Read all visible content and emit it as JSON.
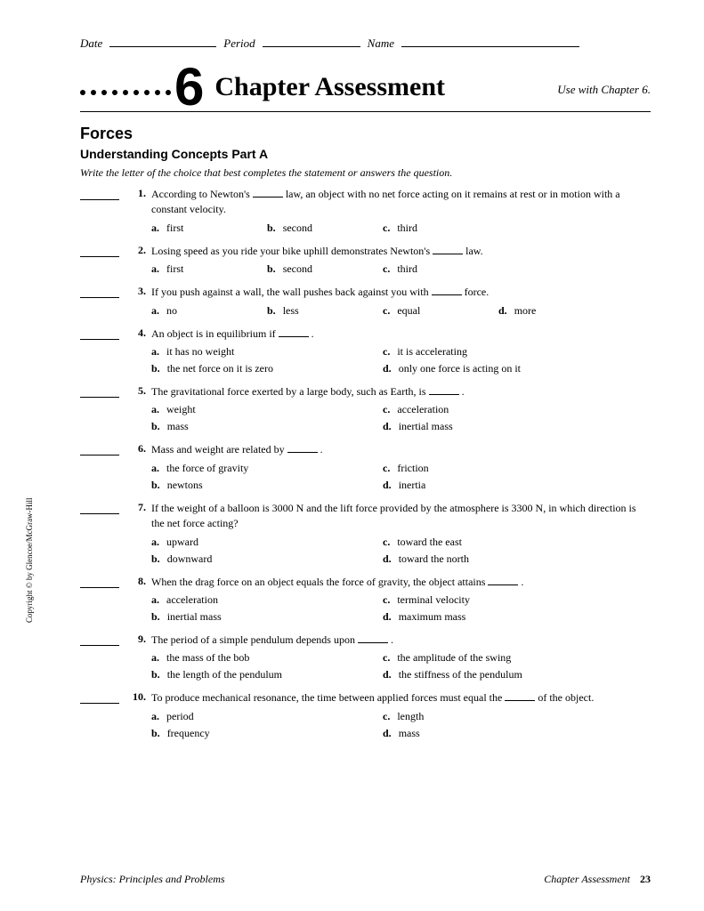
{
  "header": {
    "date_label": "Date",
    "period_label": "Period",
    "name_label": "Name"
  },
  "chapter": {
    "number": "6",
    "title": "Chapter Assessment",
    "use_with": "Use with Chapter 6."
  },
  "section": {
    "title": "Forces",
    "subtitle": "Understanding Concepts Part A",
    "instructions": "Write the letter of the choice that best completes the statement or answers the question."
  },
  "questions": [
    {
      "num": "1.",
      "text_before": "According to Newton's ",
      "text_after": " law, an object with no net force acting on it remains at rest or in motion with a constant velocity.",
      "layout": "inline",
      "choices": [
        {
          "l": "a.",
          "t": "first"
        },
        {
          "l": "b.",
          "t": "second"
        },
        {
          "l": "c.",
          "t": "third"
        }
      ]
    },
    {
      "num": "2.",
      "text_before": "Losing speed as you ride your bike uphill demonstrates Newton's ",
      "text_after": " law.",
      "layout": "inline",
      "choices": [
        {
          "l": "a.",
          "t": "first"
        },
        {
          "l": "b.",
          "t": "second"
        },
        {
          "l": "c.",
          "t": "third"
        }
      ]
    },
    {
      "num": "3.",
      "text_before": "If you push against a wall, the wall pushes back against you with ",
      "text_after": " force.",
      "layout": "inline",
      "choices": [
        {
          "l": "a.",
          "t": "no"
        },
        {
          "l": "b.",
          "t": "less"
        },
        {
          "l": "c.",
          "t": "equal"
        },
        {
          "l": "d.",
          "t": "more"
        }
      ]
    },
    {
      "num": "4.",
      "text_before": "An object is in equilibrium if ",
      "text_after": " .",
      "layout": "2col",
      "choices": [
        {
          "l": "a.",
          "t": "it has no weight"
        },
        {
          "l": "c.",
          "t": "it is accelerating"
        },
        {
          "l": "b.",
          "t": "the net force on it is zero"
        },
        {
          "l": "d.",
          "t": "only one force is acting on it"
        }
      ]
    },
    {
      "num": "5.",
      "text_before": "The gravitational force exerted by a large body, such as Earth, is ",
      "text_after": " .",
      "layout": "2col",
      "choices": [
        {
          "l": "a.",
          "t": "weight"
        },
        {
          "l": "c.",
          "t": "acceleration"
        },
        {
          "l": "b.",
          "t": "mass"
        },
        {
          "l": "d.",
          "t": "inertial mass"
        }
      ]
    },
    {
      "num": "6.",
      "text_before": "Mass and weight are related by ",
      "text_after": " .",
      "layout": "2col",
      "choices": [
        {
          "l": "a.",
          "t": "the force of gravity"
        },
        {
          "l": "c.",
          "t": "friction"
        },
        {
          "l": "b.",
          "t": "newtons"
        },
        {
          "l": "d.",
          "t": "inertia"
        }
      ]
    },
    {
      "num": "7.",
      "text_before": "If the weight of a balloon is 3000 N and the lift force provided by the atmosphere is 3300 N, in which direction is the net force acting?",
      "text_after": "",
      "no_blank": true,
      "layout": "2col",
      "choices": [
        {
          "l": "a.",
          "t": "upward"
        },
        {
          "l": "c.",
          "t": "toward the east"
        },
        {
          "l": "b.",
          "t": "downward"
        },
        {
          "l": "d.",
          "t": "toward the north"
        }
      ]
    },
    {
      "num": "8.",
      "text_before": "When the drag force on an object equals the force of gravity, the object attains ",
      "text_after": " .",
      "layout": "2col",
      "choices": [
        {
          "l": "a.",
          "t": "acceleration"
        },
        {
          "l": "c.",
          "t": "terminal velocity"
        },
        {
          "l": "b.",
          "t": "inertial mass"
        },
        {
          "l": "d.",
          "t": "maximum mass"
        }
      ]
    },
    {
      "num": "9.",
      "text_before": "The period of a simple pendulum depends upon ",
      "text_after": " .",
      "layout": "2col",
      "choices": [
        {
          "l": "a.",
          "t": "the mass of the bob"
        },
        {
          "l": "c.",
          "t": "the amplitude of the swing"
        },
        {
          "l": "b.",
          "t": "the length of the pendulum"
        },
        {
          "l": "d.",
          "t": "the stiffness of the pendulum"
        }
      ]
    },
    {
      "num": "10.",
      "text_before": "To produce mechanical resonance, the time between applied forces must equal the ",
      "text_after": " of the object.",
      "layout": "2col",
      "choices": [
        {
          "l": "a.",
          "t": "period"
        },
        {
          "l": "c.",
          "t": "length"
        },
        {
          "l": "b.",
          "t": "frequency"
        },
        {
          "l": "d.",
          "t": "mass"
        }
      ]
    }
  ],
  "copyright": "Copyright © by Glencoe/McGraw-Hill",
  "footer": {
    "left": "Physics: Principles and Problems",
    "right_label": "Chapter Assessment",
    "page": "23"
  }
}
